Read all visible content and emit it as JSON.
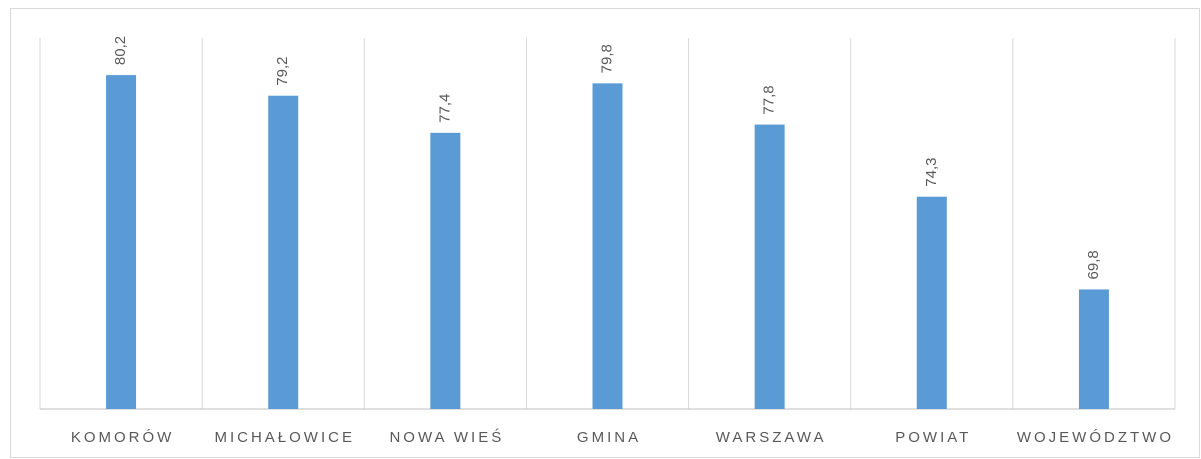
{
  "chart_data": {
    "type": "bar",
    "categories": [
      "KOMORÓW",
      "MICHAŁOWICE",
      "NOWA WIEŚ",
      "GMINA",
      "WARSZAWA",
      "POWIAT",
      "WOJEWÓDZTWO"
    ],
    "values": [
      80.2,
      79.2,
      77.4,
      79.8,
      77.8,
      74.3,
      69.8
    ],
    "value_labels": [
      "80,2",
      "79,2",
      "77,4",
      "79,8",
      "77,8",
      "74,3",
      "69,8"
    ],
    "color": "#5b9bd5",
    "ylim": [
      64,
      82
    ]
  }
}
